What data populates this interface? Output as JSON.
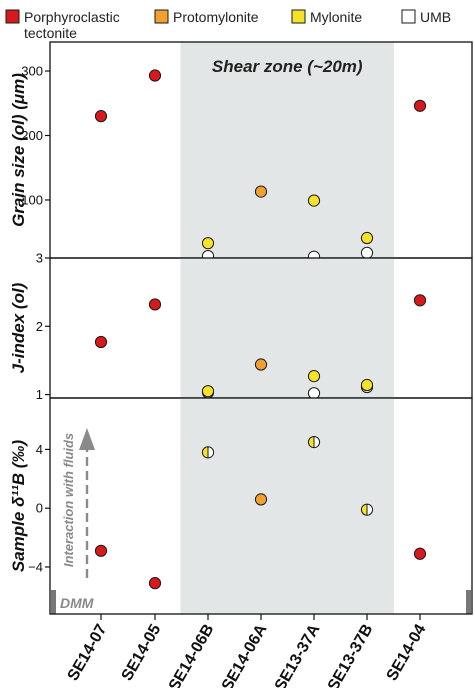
{
  "colors": {
    "porphyroclastic": "#d7191c",
    "protomylonite": "#f4a030",
    "mylonite": "#f7e22a",
    "umb": "#ffffff",
    "shear_zone": "#e3e6e6",
    "annotation": "#8a8a8a",
    "point_stroke": "#1a1a1a"
  },
  "legend": [
    {
      "key": "porphyroclastic",
      "line1": "Porphyroclastic",
      "line2": "tectonite"
    },
    {
      "key": "protomylonite",
      "line1": "Protomylonite",
      "line2": ""
    },
    {
      "key": "mylonite",
      "line1": "Mylonite",
      "line2": ""
    },
    {
      "key": "umb",
      "line1": "UMB",
      "line2": ""
    }
  ],
  "annotations": {
    "shear_zone": "Shear zone (~20m)",
    "arrow": "Interaction with fluids",
    "dmm": "DMM"
  },
  "chart_data": {
    "type": "scatter",
    "categories": [
      "SE14-07",
      "SE14-05",
      "SE14-06B",
      "SE14-06A",
      "SE13-37A",
      "SE13-37B",
      "SE14-04"
    ],
    "shaded_category_range": [
      "SE14-06B",
      "SE13-37B"
    ],
    "panels": [
      {
        "ylabel": "Grain size (ol) (μm)",
        "ylim": [
          10,
          345
        ],
        "yticks": [
          100,
          200,
          300
        ],
        "points": [
          {
            "category": "SE14-07",
            "value": 230,
            "type": "porphyroclastic"
          },
          {
            "category": "SE14-05",
            "value": 293,
            "type": "porphyroclastic"
          },
          {
            "category": "SE14-04",
            "value": 246,
            "type": "porphyroclastic"
          },
          {
            "category": "SE14-06A",
            "value": 113,
            "type": "protomylonite"
          },
          {
            "category": "SE14-06B",
            "value": 33,
            "type": "mylonite"
          },
          {
            "category": "SE13-37A",
            "value": 99,
            "type": "mylonite"
          },
          {
            "category": "SE13-37B",
            "value": 41,
            "type": "mylonite"
          },
          {
            "category": "SE14-06B",
            "value": 13,
            "type": "umb"
          },
          {
            "category": "SE13-37A",
            "value": 12,
            "type": "umb"
          },
          {
            "category": "SE13-37B",
            "value": 18,
            "type": "umb"
          }
        ]
      },
      {
        "ylabel": "J-index (ol)",
        "ylim": [
          0.95,
          3.0
        ],
        "yticks": [
          1,
          2,
          3
        ],
        "points": [
          {
            "category": "SE14-07",
            "value": 1.77,
            "type": "porphyroclastic"
          },
          {
            "category": "SE14-05",
            "value": 2.32,
            "type": "porphyroclastic"
          },
          {
            "category": "SE14-04",
            "value": 2.38,
            "type": "porphyroclastic"
          },
          {
            "category": "SE14-06A",
            "value": 1.44,
            "type": "protomylonite"
          },
          {
            "category": "SE14-06B",
            "value": 1.05,
            "type": "mylonite"
          },
          {
            "category": "SE13-37A",
            "value": 1.27,
            "type": "mylonite"
          },
          {
            "category": "SE13-37B",
            "value": 1.14,
            "type": "mylonite"
          },
          {
            "category": "SE14-06B",
            "value": 1.03,
            "type": "umb"
          },
          {
            "category": "SE13-37A",
            "value": 1.02,
            "type": "umb"
          },
          {
            "category": "SE13-37B",
            "value": 1.11,
            "type": "umb"
          }
        ]
      },
      {
        "ylabel": "Sample δ¹¹B (‰)",
        "ylim": [
          -7.2,
          7.5
        ],
        "yticks": [
          -4,
          0,
          4
        ],
        "points": [
          {
            "category": "SE14-07",
            "value": -2.9,
            "type": "porphyroclastic"
          },
          {
            "category": "SE14-05",
            "value": -5.1,
            "type": "porphyroclastic"
          },
          {
            "category": "SE14-04",
            "value": -3.1,
            "type": "porphyroclastic"
          },
          {
            "category": "SE14-06A",
            "value": 0.6,
            "type": "protomylonite"
          },
          {
            "category": "SE14-06B",
            "value": 3.8,
            "type": "mylonite_umb"
          },
          {
            "category": "SE13-37A",
            "value": 4.5,
            "type": "mylonite_umb"
          },
          {
            "category": "SE13-37B",
            "value": -0.1,
            "type": "mylonite_umb"
          }
        ]
      }
    ]
  }
}
